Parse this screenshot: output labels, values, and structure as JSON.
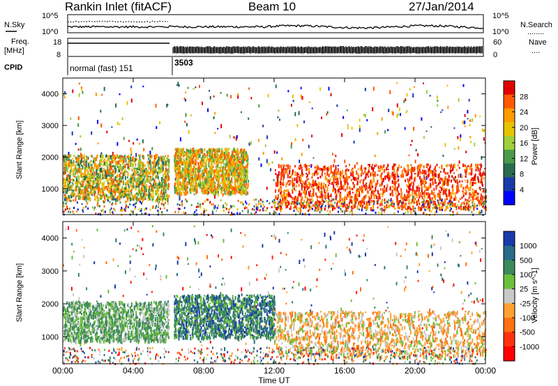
{
  "header": {
    "station": "Rankin Inlet (fitACF)",
    "beam": "Beam 10",
    "date": "27/Jan/2014"
  },
  "panels": {
    "nsky_label": "N.Sky",
    "nsearch_label": "N.Search",
    "nsearch_dots": "........",
    "freq_label": "Freq.",
    "freq_unit": "[MHz]",
    "nave_label": "Nave",
    "nave_dots": "....",
    "cpid_label": "CPID",
    "cpid_segments": [
      "normal (fast) 151",
      "3503"
    ],
    "noise_ticks": [
      "10^5",
      "10^0"
    ],
    "freq_ticks": [
      "18",
      "8"
    ],
    "nave_ticks": [
      "60",
      "0"
    ]
  },
  "chart_data": [
    {
      "type": "heatmap",
      "title": "",
      "xlabel": "",
      "ylabel": "Slant Range [km]",
      "xlim": [
        0,
        24
      ],
      "ylim": [
        180,
        4500
      ],
      "x_ticks": [
        "00:00",
        "04:00",
        "08:00",
        "12:00",
        "16:00",
        "20:00",
        "00:00"
      ],
      "y_ticks": [
        "1000",
        "2000",
        "3000",
        "4000"
      ],
      "colorbar": {
        "label": "Power [dB]",
        "ticks": [
          "28",
          "24",
          "20",
          "16",
          "12",
          "8",
          "4"
        ],
        "colors": [
          "#e10000",
          "#ff5a00",
          "#ff9a00",
          "#e6c400",
          "#9fcf3a",
          "#4a9a4a",
          "#2a6b52",
          "#1a3aa8",
          "#0000ff"
        ]
      },
      "description_regions": [
        {
          "x": [
            0.0,
            6.0
          ],
          "range": [
            700,
            2100
          ],
          "value": 14
        },
        {
          "x": [
            6.3,
            10.5
          ],
          "range": [
            900,
            2300
          ],
          "value": 20
        },
        {
          "x": [
            12.0,
            24.0
          ],
          "range": [
            400,
            1800
          ],
          "value": 27
        }
      ]
    },
    {
      "type": "heatmap",
      "title": "",
      "xlabel": "Time UT",
      "ylabel": "Slant Range [km]",
      "xlim": [
        0,
        24
      ],
      "ylim": [
        180,
        4500
      ],
      "x_ticks": [
        "00:00",
        "04:00",
        "08:00",
        "12:00",
        "16:00",
        "20:00",
        "00:00"
      ],
      "y_ticks": [
        "1000",
        "2000",
        "3000",
        "4000"
      ],
      "colorbar": {
        "label": "Velocity [m s^-1]",
        "ticks": [
          "1000",
          "500",
          "100",
          "25",
          "-25",
          "-100",
          "-500",
          "-1000"
        ],
        "colors": [
          "#1a3aa8",
          "#2a6b8a",
          "#3c8a5a",
          "#6bbf3a",
          "#c8c8c8",
          "#ffa030",
          "#ff7010",
          "#ff3010",
          "#ff0000"
        ]
      },
      "description_regions": [
        {
          "x": [
            0.0,
            6.0
          ],
          "range": [
            900,
            2100
          ],
          "value": 100
        },
        {
          "x": [
            6.3,
            12.0
          ],
          "range": [
            1000,
            2300
          ],
          "value": 300
        },
        {
          "x": [
            12.0,
            24.0
          ],
          "range": [
            400,
            1800
          ],
          "value": -150
        }
      ]
    }
  ]
}
